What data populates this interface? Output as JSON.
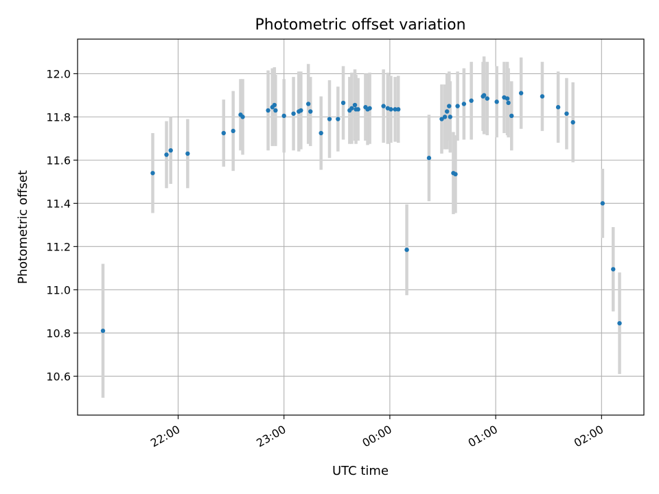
{
  "chart_data": {
    "type": "scatter",
    "title": "Photometric offset variation",
    "xlabel": "UTC time",
    "ylabel": "Photometric offset",
    "x_unit": "hours (UTC, relative to 00:00 of the night)",
    "xlim": [
      -2.95,
      2.4
    ],
    "ylim": [
      10.42,
      12.16
    ],
    "x_ticks": [
      {
        "value": -2,
        "label": "22:00"
      },
      {
        "value": -1,
        "label": "23:00"
      },
      {
        "value": 0,
        "label": "00:00"
      },
      {
        "value": 1,
        "label": "01:00"
      },
      {
        "value": 2,
        "label": "02:00"
      }
    ],
    "y_ticks": [
      {
        "value": 10.6,
        "label": "10.6"
      },
      {
        "value": 10.8,
        "label": "10.8"
      },
      {
        "value": 11.0,
        "label": "11.0"
      },
      {
        "value": 11.2,
        "label": "11.2"
      },
      {
        "value": 11.4,
        "label": "11.4"
      },
      {
        "value": 11.6,
        "label": "11.6"
      },
      {
        "value": 11.8,
        "label": "11.8"
      },
      {
        "value": 12.0,
        "label": "12.0"
      }
    ],
    "grid": true,
    "point_color": "#1f77b4",
    "errorbar_color": "#d3d3d3",
    "series": [
      {
        "points": [
          {
            "x": -2.71,
            "y": 10.81,
            "err": 0.31
          },
          {
            "x": -2.24,
            "y": 11.54,
            "err": 0.185
          },
          {
            "x": -2.11,
            "y": 11.625,
            "err": 0.155
          },
          {
            "x": -2.07,
            "y": 11.645,
            "err": 0.155
          },
          {
            "x": -1.91,
            "y": 11.63,
            "err": 0.16
          },
          {
            "x": -1.57,
            "y": 11.725,
            "err": 0.155
          },
          {
            "x": -1.48,
            "y": 11.735,
            "err": 0.185
          },
          {
            "x": -1.41,
            "y": 11.81,
            "err": 0.165
          },
          {
            "x": -1.39,
            "y": 11.8,
            "err": 0.175
          },
          {
            "x": -1.15,
            "y": 11.83,
            "err": 0.185
          },
          {
            "x": -1.11,
            "y": 11.845,
            "err": 0.18
          },
          {
            "x": -1.09,
            "y": 11.855,
            "err": 0.175
          },
          {
            "x": -1.08,
            "y": 11.83,
            "err": 0.165
          },
          {
            "x": -1.0,
            "y": 11.805,
            "err": 0.17
          },
          {
            "x": -0.91,
            "y": 11.815,
            "err": 0.17
          },
          {
            "x": -0.86,
            "y": 11.825,
            "err": 0.185
          },
          {
            "x": -0.84,
            "y": 11.83,
            "err": 0.18
          },
          {
            "x": -0.77,
            "y": 11.86,
            "err": 0.185
          },
          {
            "x": -0.75,
            "y": 11.825,
            "err": 0.16
          },
          {
            "x": -0.65,
            "y": 11.725,
            "err": 0.17
          },
          {
            "x": -0.57,
            "y": 11.79,
            "err": 0.18
          },
          {
            "x": -0.49,
            "y": 11.79,
            "err": 0.15
          },
          {
            "x": -0.44,
            "y": 11.865,
            "err": 0.17
          },
          {
            "x": -0.38,
            "y": 11.83,
            "err": 0.155
          },
          {
            "x": -0.36,
            "y": 11.84,
            "err": 0.165
          },
          {
            "x": -0.33,
            "y": 11.855,
            "err": 0.165
          },
          {
            "x": -0.32,
            "y": 11.835,
            "err": 0.16
          },
          {
            "x": -0.3,
            "y": 11.835,
            "err": 0.145
          },
          {
            "x": -0.23,
            "y": 11.845,
            "err": 0.155
          },
          {
            "x": -0.21,
            "y": 11.835,
            "err": 0.165
          },
          {
            "x": -0.19,
            "y": 11.84,
            "err": 0.165
          },
          {
            "x": -0.06,
            "y": 11.85,
            "err": 0.17
          },
          {
            "x": -0.02,
            "y": 11.84,
            "err": 0.165
          },
          {
            "x": 0.01,
            "y": 11.835,
            "err": 0.155
          },
          {
            "x": 0.05,
            "y": 11.835,
            "err": 0.15
          },
          {
            "x": 0.08,
            "y": 11.835,
            "err": 0.155
          },
          {
            "x": 0.16,
            "y": 11.185,
            "err": 0.21
          },
          {
            "x": 0.37,
            "y": 11.61,
            "err": 0.2
          },
          {
            "x": 0.49,
            "y": 11.79,
            "err": 0.16
          },
          {
            "x": 0.52,
            "y": 11.8,
            "err": 0.15
          },
          {
            "x": 0.54,
            "y": 11.825,
            "err": 0.175
          },
          {
            "x": 0.56,
            "y": 11.85,
            "err": 0.16
          },
          {
            "x": 0.57,
            "y": 11.8,
            "err": 0.165
          },
          {
            "x": 0.6,
            "y": 11.54,
            "err": 0.19
          },
          {
            "x": 0.62,
            "y": 11.535,
            "err": 0.18
          },
          {
            "x": 0.64,
            "y": 11.85,
            "err": 0.16
          },
          {
            "x": 0.7,
            "y": 11.86,
            "err": 0.165
          },
          {
            "x": 0.77,
            "y": 11.875,
            "err": 0.18
          },
          {
            "x": 0.88,
            "y": 11.895,
            "err": 0.16
          },
          {
            "x": 0.89,
            "y": 11.9,
            "err": 0.18
          },
          {
            "x": 0.92,
            "y": 11.885,
            "err": 0.17
          },
          {
            "x": 1.01,
            "y": 11.87,
            "err": 0.165
          },
          {
            "x": 1.08,
            "y": 11.89,
            "err": 0.165
          },
          {
            "x": 1.11,
            "y": 11.885,
            "err": 0.17
          },
          {
            "x": 1.12,
            "y": 11.865,
            "err": 0.16
          },
          {
            "x": 1.15,
            "y": 11.805,
            "err": 0.16
          },
          {
            "x": 1.24,
            "y": 11.91,
            "err": 0.165
          },
          {
            "x": 1.44,
            "y": 11.895,
            "err": 0.16
          },
          {
            "x": 1.59,
            "y": 11.845,
            "err": 0.165
          },
          {
            "x": 1.67,
            "y": 11.815,
            "err": 0.165
          },
          {
            "x": 1.73,
            "y": 11.775,
            "err": 0.185
          },
          {
            "x": 2.01,
            "y": 11.4,
            "err": 0.16
          },
          {
            "x": 2.11,
            "y": 11.095,
            "err": 0.195
          },
          {
            "x": 2.17,
            "y": 10.845,
            "err": 0.235
          }
        ]
      }
    ]
  }
}
